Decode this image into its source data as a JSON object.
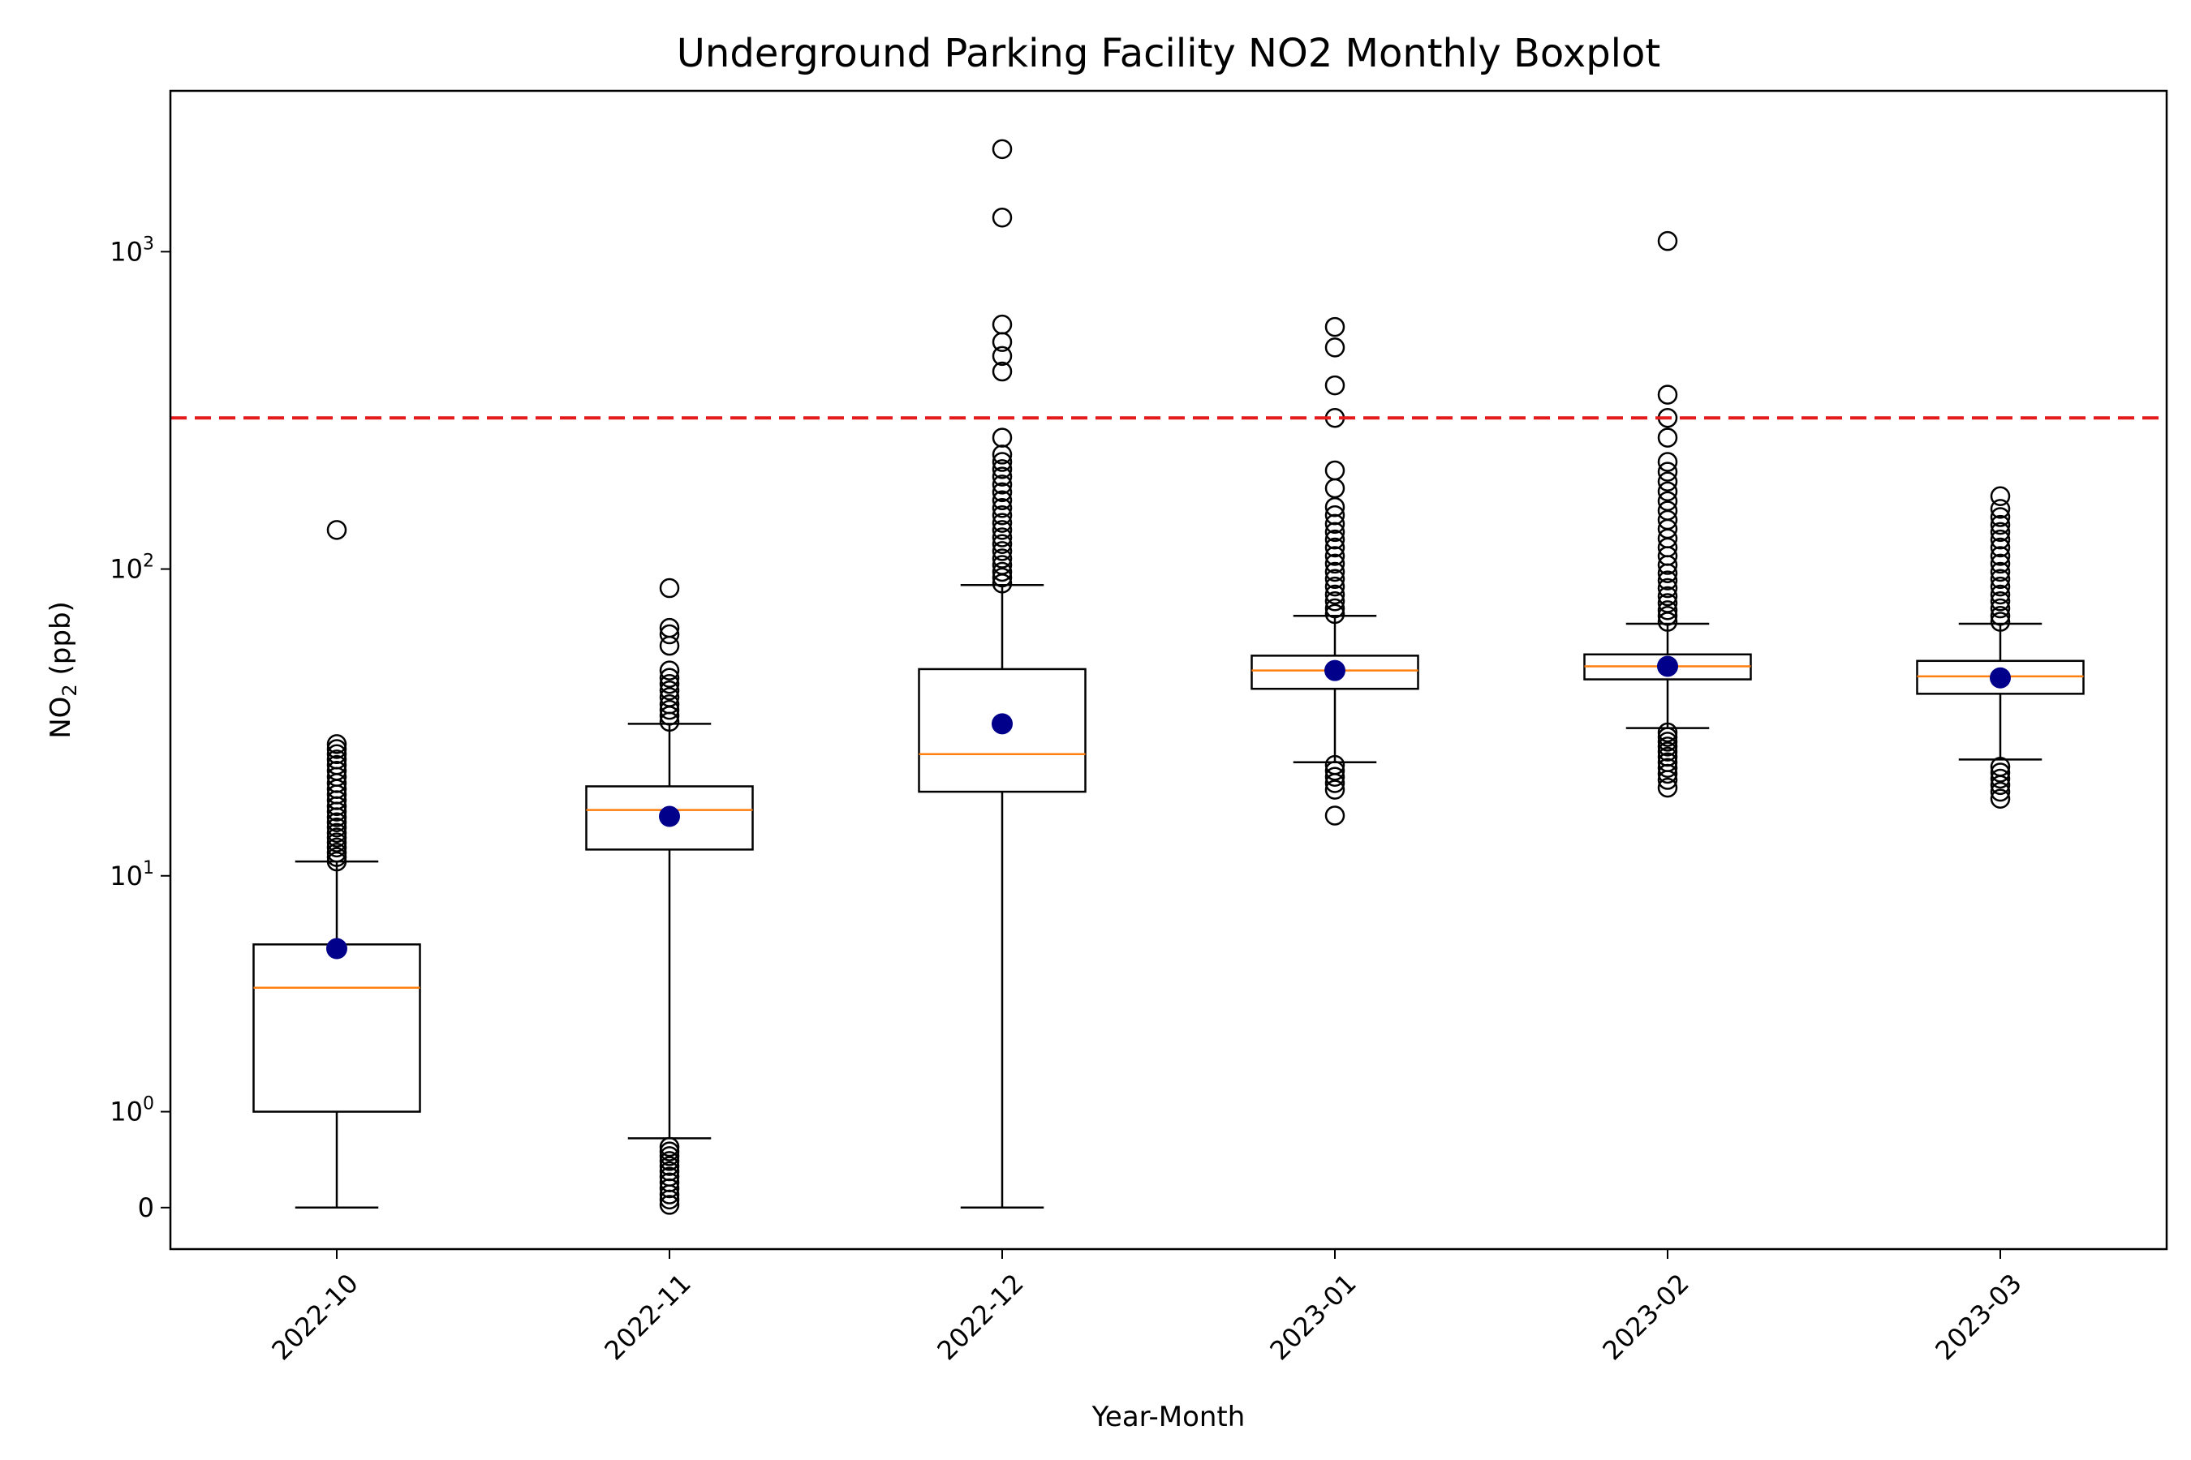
{
  "chart_data": {
    "type": "boxplot",
    "title": "Underground Parking Facility NO2 Monthly Boxplot",
    "xlabel": "Year-Month",
    "ylabel": {
      "main": "NO",
      "sub": "2",
      "unit": " (ppb)"
    },
    "yscale": "symlog",
    "ylim": [
      -0.35,
      3200
    ],
    "yticks": [
      {
        "value": 0,
        "label": "0"
      },
      {
        "value": 1,
        "base": "10",
        "exp": "0"
      },
      {
        "value": 10,
        "base": "10",
        "exp": "1"
      },
      {
        "value": 100,
        "base": "10",
        "exp": "2"
      },
      {
        "value": 1000,
        "base": "10",
        "exp": "3"
      }
    ],
    "categories": [
      "2022-10",
      "2022-11",
      "2022-12",
      "2023-01",
      "2023-02",
      "2023-03"
    ],
    "boxes": [
      {
        "category": "2022-10",
        "whisker_low": 0,
        "q1": 1.0,
        "median": 3.9,
        "q3": 5.7,
        "whisker_high": 11.2,
        "mean": 5.5,
        "outliers": [
          11.2,
          11.6,
          12.0,
          12.5,
          13.0,
          13.5,
          14.0,
          14.6,
          15.2,
          15.8,
          16.5,
          17.2,
          18.0,
          18.8,
          19.6,
          20.5,
          21.5,
          22.5,
          23.5,
          24.5,
          25.5,
          26.5,
          27.5,
          133
        ]
      },
      {
        "category": "2022-11",
        "whisker_low": 0.65,
        "q1": 12.3,
        "median": 16.7,
        "q3": 20.0,
        "whisker_high": 32.0,
        "mean": 15.9,
        "outliers": [
          0.02,
          0.06,
          0.1,
          0.15,
          0.2,
          0.25,
          0.3,
          0.35,
          0.4,
          0.45,
          0.5,
          0.55,
          32.5,
          34,
          35.5,
          37,
          39,
          41,
          43,
          45,
          47.5,
          57,
          62,
          65,
          87
        ]
      },
      {
        "category": "2022-12",
        "whisker_low": 0,
        "q1": 19.2,
        "median": 25.5,
        "q3": 48.0,
        "whisker_high": 89.0,
        "mean": 32.0,
        "outliers": [
          90,
          94,
          98,
          103,
          108,
          114,
          120,
          126,
          133,
          140,
          148,
          156,
          165,
          175,
          185,
          196,
          207,
          218,
          230,
          260,
          420,
          470,
          520,
          590,
          1280,
          2100
        ]
      },
      {
        "category": "2023-01",
        "whisker_low": 24.0,
        "q1": 41.5,
        "median": 47.5,
        "q3": 53.0,
        "whisker_high": 71.0,
        "mean": 47.5,
        "outliers": [
          16.0,
          19.5,
          20.5,
          21.5,
          22.5,
          23.5,
          72,
          75,
          79,
          83,
          88,
          93,
          98,
          104,
          110,
          117,
          124,
          131,
          139,
          148,
          157,
          180,
          205,
          300,
          380,
          500,
          580
        ]
      },
      {
        "category": "2023-02",
        "whisker_low": 31.0,
        "q1": 44.5,
        "median": 49.0,
        "q3": 53.5,
        "whisker_high": 67.0,
        "mean": 49.0,
        "outliers": [
          19.8,
          21,
          22,
          23,
          24,
          25,
          26,
          27,
          28,
          29,
          30,
          68,
          71,
          74,
          78,
          82,
          87,
          92,
          97,
          103,
          110,
          117,
          125,
          134,
          143,
          153,
          164,
          176,
          189,
          203,
          218,
          260,
          300,
          355,
          1080
        ]
      },
      {
        "category": "2023-03",
        "whisker_low": 24.5,
        "q1": 40.0,
        "median": 45.5,
        "q3": 51.0,
        "whisker_high": 67.0,
        "mean": 45.0,
        "outliers": [
          18.2,
          19.2,
          20.2,
          21.2,
          22.2,
          23.2,
          68,
          71,
          75,
          79,
          83,
          88,
          93,
          98,
          104,
          110,
          117,
          124,
          131,
          138,
          146,
          155,
          170
        ]
      }
    ],
    "reference_line": {
      "value": 300,
      "style": "dashed"
    },
    "colors": {
      "box": "#000000",
      "median": "#ff7f0e",
      "mean": "#00008b",
      "reference": "#e41a1c",
      "outlier": "#000000"
    },
    "grid": false,
    "legend": "none"
  }
}
